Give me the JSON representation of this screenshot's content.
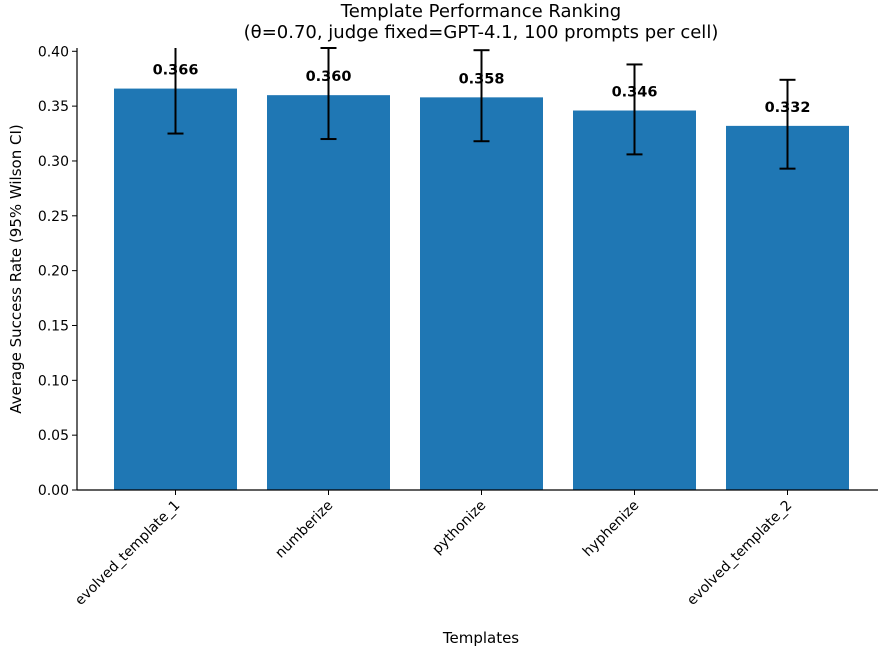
{
  "chart_data": {
    "type": "bar",
    "title": "Template Performance Ranking",
    "subtitle": "(θ=0.70, judge fixed=GPT-4.1, 100 prompts per cell)",
    "xlabel": "Templates",
    "ylabel": "Average Success Rate (95% Wilson CI)",
    "categories": [
      "evolved_template_1",
      "numberize",
      "pythonize",
      "hyphenize",
      "evolved_template_2"
    ],
    "values": [
      0.366,
      0.36,
      0.358,
      0.346,
      0.332
    ],
    "value_labels": [
      "0.366",
      "0.360",
      "0.358",
      "0.346",
      "0.332"
    ],
    "ci_lower": [
      0.325,
      0.32,
      0.318,
      0.306,
      0.293
    ],
    "ci_upper": [
      0.412,
      0.403,
      0.401,
      0.388,
      0.374
    ],
    "ylim": [
      0,
      0.403
    ],
    "yticks": [
      0.0,
      0.05,
      0.1,
      0.15,
      0.2,
      0.25,
      0.3,
      0.35,
      0.4
    ],
    "ytick_labels": [
      "0.00",
      "0.05",
      "0.10",
      "0.15",
      "0.20",
      "0.25",
      "0.30",
      "0.35",
      "0.40"
    ],
    "grid": false,
    "legend": "none",
    "bar_color": "#1f77b4",
    "errorbar_color": "#000000"
  }
}
